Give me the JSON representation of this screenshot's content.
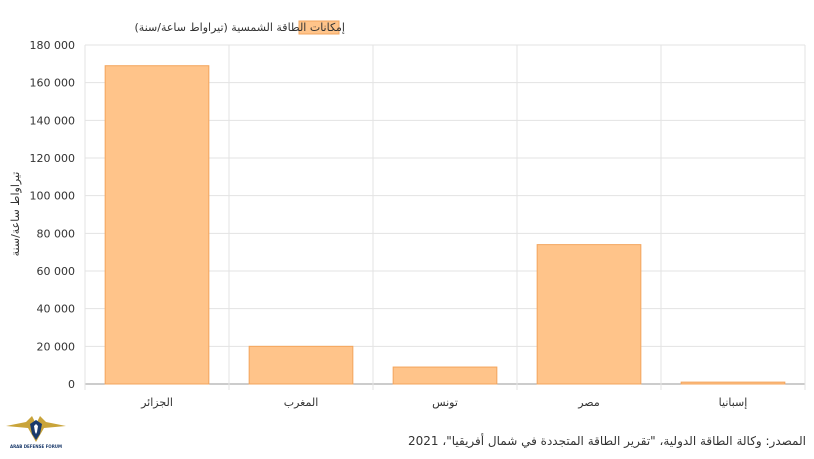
{
  "chart_data": {
    "type": "bar",
    "categories": [
      "الجزائر",
      "المغرب",
      "تونس",
      "مصر",
      "إسبانيا"
    ],
    "series": [
      {
        "name": "إمكانات الطاقة الشمسية (تيراواط ساعة/سنة)",
        "values": [
          169000,
          20000,
          9000,
          74000,
          1000
        ]
      }
    ],
    "ylabel": "تيراواط ساعة/سنة",
    "xlabel": "",
    "ylim": [
      0,
      180000
    ],
    "yticks": [
      0,
      20000,
      40000,
      60000,
      80000,
      100000,
      120000,
      140000,
      160000,
      180000
    ],
    "ytick_labels": [
      "0",
      "20 000",
      "40 000",
      "60 000",
      "80 000",
      "100 000",
      "120 000",
      "140 000",
      "160 000",
      "180 000"
    ],
    "legend_position": "top-center",
    "grid": true,
    "bar_color": "#ffc48a",
    "bar_border_color": "#f3a55c"
  },
  "source_text": "المصدر: وكالة الطاقة الدولية، \"تقرير الطاقة المتجددة في شمال أفريقيا\"، 2021",
  "logo": {
    "icon": "eagle-shield-logo",
    "caption": "ARAB DEFENSE FORUM"
  }
}
